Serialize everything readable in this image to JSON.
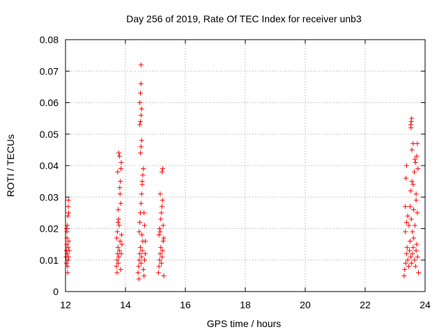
{
  "chart_data": {
    "type": "scatter",
    "title": "Day 256 of 2019, Rate Of TEC Index for receiver unb3",
    "xlabel": "GPS time / hours",
    "ylabel": "ROTI / TECUs",
    "xlim": [
      12,
      24
    ],
    "ylim": [
      0,
      0.08
    ],
    "grid": true,
    "marker": "+",
    "colors": {
      "series": "#ff0000",
      "axes": "#000000",
      "grid": "#a0a0a0"
    },
    "x_ticks": [
      12,
      14,
      16,
      18,
      20,
      22,
      24
    ],
    "x_tick_labels": [
      "12",
      "14",
      "16",
      "18",
      "20",
      "22",
      "24"
    ],
    "y_ticks": [
      0,
      0.01,
      0.02,
      0.03,
      0.04,
      0.05,
      0.06,
      0.07,
      0.08
    ],
    "y_tick_labels": [
      "0",
      "0.01",
      "0.02",
      "0.03",
      "0.04",
      "0.05",
      "0.06",
      "0.07",
      "0.08"
    ],
    "series": [
      {
        "name": "ROTI",
        "points": [
          [
            12.02,
            0.011
          ],
          [
            12.03,
            0.013
          ],
          [
            12.04,
            0.009
          ],
          [
            12.05,
            0.015
          ],
          [
            12.05,
            0.017
          ],
          [
            12.06,
            0.012
          ],
          [
            12.07,
            0.008
          ],
          [
            12.08,
            0.01
          ],
          [
            12.09,
            0.014
          ],
          [
            12.1,
            0.011
          ],
          [
            12.04,
            0.02
          ],
          [
            12.06,
            0.021
          ],
          [
            12.08,
            0.024
          ],
          [
            12.1,
            0.025
          ],
          [
            12.09,
            0.027
          ],
          [
            12.1,
            0.029
          ],
          [
            12.07,
            0.006
          ],
          [
            12.11,
            0.016
          ],
          [
            12.12,
            0.013
          ],
          [
            12.05,
            0.019
          ],
          [
            13.7,
            0.008
          ],
          [
            13.72,
            0.01
          ],
          [
            13.74,
            0.012
          ],
          [
            13.75,
            0.014
          ],
          [
            13.76,
            0.009
          ],
          [
            13.78,
            0.011
          ],
          [
            13.8,
            0.013
          ],
          [
            13.82,
            0.016
          ],
          [
            13.84,
            0.007
          ],
          [
            13.86,
            0.012
          ],
          [
            13.71,
            0.017
          ],
          [
            13.73,
            0.019
          ],
          [
            13.75,
            0.022
          ],
          [
            13.77,
            0.023
          ],
          [
            13.79,
            0.021
          ],
          [
            13.81,
            0.033
          ],
          [
            13.83,
            0.035
          ],
          [
            13.85,
            0.039
          ],
          [
            13.86,
            0.041
          ],
          [
            13.8,
            0.043
          ],
          [
            13.74,
            0.038
          ],
          [
            13.78,
            0.044
          ],
          [
            13.82,
            0.031
          ],
          [
            13.84,
            0.028
          ],
          [
            13.76,
            0.026
          ],
          [
            13.72,
            0.006
          ],
          [
            13.88,
            0.015
          ],
          [
            13.87,
            0.018
          ],
          [
            14.42,
            0.006
          ],
          [
            14.44,
            0.008
          ],
          [
            14.46,
            0.01
          ],
          [
            14.48,
            0.012
          ],
          [
            14.5,
            0.014
          ],
          [
            14.52,
            0.009
          ],
          [
            14.54,
            0.011
          ],
          [
            14.56,
            0.013
          ],
          [
            14.58,
            0.016
          ],
          [
            14.6,
            0.007
          ],
          [
            14.62,
            0.005
          ],
          [
            14.64,
            0.01
          ],
          [
            14.66,
            0.012
          ],
          [
            14.45,
            0.004
          ],
          [
            14.55,
            0.018
          ],
          [
            14.48,
            0.022
          ],
          [
            14.5,
            0.025
          ],
          [
            14.52,
            0.028
          ],
          [
            14.54,
            0.031
          ],
          [
            14.56,
            0.034
          ],
          [
            14.58,
            0.037
          ],
          [
            14.6,
            0.039
          ],
          [
            14.62,
            0.025
          ],
          [
            14.64,
            0.021
          ],
          [
            14.5,
            0.044
          ],
          [
            14.52,
            0.046
          ],
          [
            14.54,
            0.048
          ],
          [
            14.48,
            0.053
          ],
          [
            14.5,
            0.054
          ],
          [
            14.52,
            0.056
          ],
          [
            14.54,
            0.058
          ],
          [
            14.48,
            0.06
          ],
          [
            14.5,
            0.063
          ],
          [
            14.52,
            0.066
          ],
          [
            14.52,
            0.072
          ],
          [
            14.46,
            0.019
          ],
          [
            14.66,
            0.016
          ],
          [
            14.56,
            0.035
          ],
          [
            15.1,
            0.006
          ],
          [
            15.12,
            0.008
          ],
          [
            15.14,
            0.01
          ],
          [
            15.16,
            0.012
          ],
          [
            15.18,
            0.014
          ],
          [
            15.2,
            0.009
          ],
          [
            15.22,
            0.011
          ],
          [
            15.24,
            0.013
          ],
          [
            15.26,
            0.016
          ],
          [
            15.28,
            0.005
          ],
          [
            15.12,
            0.018
          ],
          [
            15.14,
            0.02
          ],
          [
            15.16,
            0.019
          ],
          [
            15.18,
            0.023
          ],
          [
            15.2,
            0.025
          ],
          [
            15.22,
            0.027
          ],
          [
            15.24,
            0.029
          ],
          [
            15.16,
            0.031
          ],
          [
            15.22,
            0.038
          ],
          [
            15.24,
            0.039
          ],
          [
            15.26,
            0.021
          ],
          [
            15.28,
            0.017
          ],
          [
            23.3,
            0.005
          ],
          [
            23.32,
            0.007
          ],
          [
            23.35,
            0.009
          ],
          [
            23.38,
            0.012
          ],
          [
            23.4,
            0.014
          ],
          [
            23.42,
            0.01
          ],
          [
            23.45,
            0.008
          ],
          [
            23.48,
            0.013
          ],
          [
            23.5,
            0.016
          ],
          [
            23.52,
            0.011
          ],
          [
            23.55,
            0.009
          ],
          [
            23.58,
            0.012
          ],
          [
            23.6,
            0.014
          ],
          [
            23.62,
            0.017
          ],
          [
            23.65,
            0.01
          ],
          [
            23.68,
            0.008
          ],
          [
            23.7,
            0.013
          ],
          [
            23.72,
            0.015
          ],
          [
            23.75,
            0.011
          ],
          [
            23.78,
            0.006
          ],
          [
            23.34,
            0.019
          ],
          [
            23.38,
            0.022
          ],
          [
            23.42,
            0.024
          ],
          [
            23.46,
            0.021
          ],
          [
            23.5,
            0.027
          ],
          [
            23.54,
            0.023
          ],
          [
            23.58,
            0.019
          ],
          [
            23.62,
            0.026
          ],
          [
            23.66,
            0.021
          ],
          [
            23.7,
            0.029
          ],
          [
            23.74,
            0.025
          ],
          [
            23.34,
            0.027
          ],
          [
            23.36,
            0.036
          ],
          [
            23.38,
            0.04
          ],
          [
            23.52,
            0.032
          ],
          [
            23.56,
            0.035
          ],
          [
            23.6,
            0.034
          ],
          [
            23.64,
            0.038
          ],
          [
            23.68,
            0.041
          ],
          [
            23.72,
            0.043
          ],
          [
            23.74,
            0.047
          ],
          [
            23.56,
            0.045
          ],
          [
            23.6,
            0.047
          ],
          [
            23.66,
            0.042
          ],
          [
            23.52,
            0.053
          ],
          [
            23.54,
            0.054
          ],
          [
            23.55,
            0.055
          ],
          [
            23.53,
            0.052
          ],
          [
            23.76,
            0.039
          ],
          [
            23.7,
            0.031
          ]
        ]
      }
    ]
  }
}
